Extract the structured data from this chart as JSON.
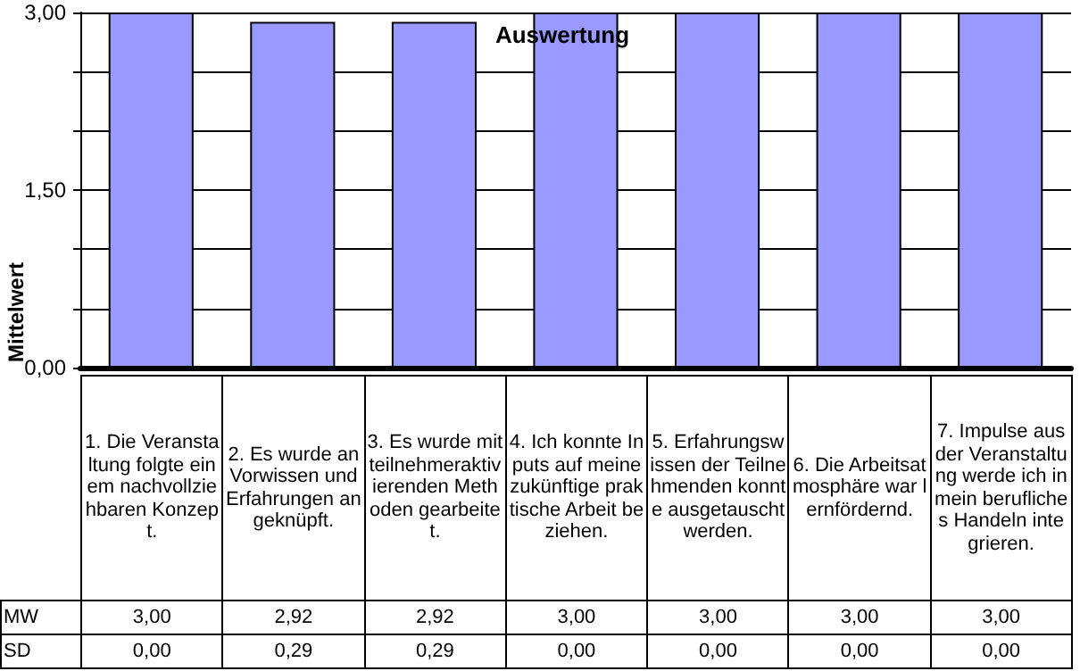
{
  "chart_data": {
    "type": "bar",
    "title": "Auswertung",
    "ylabel": "Mittelwert",
    "categories": [
      "1. Die Veranstaltung folgte einem nachvollziehbaren Konzept.",
      "2. Es wurde an Vorwissen und Erfahrungen angeknüpft.",
      "3. Es wurde mit teilnehmeraktivierenden Methoden gearbeitet.",
      "4. Ich konnte Inputs auf meine zukünftige praktische Arbeit beziehen.",
      "5. Erfahrungswissen der Teilnehmenden konnte ausgetauscht werden.",
      "6. Die Arbeitsatmosphäre war lernfördernd.",
      "7. Impulse aus der Veranstaltung werde ich in mein berufliches Handeln integrieren."
    ],
    "series": [
      {
        "name": "MW",
        "color": "#9999ff",
        "values": [
          3.0,
          2.92,
          2.92,
          3.0,
          3.0,
          3.0,
          3.0
        ],
        "value_labels": [
          "3,00",
          "2,92",
          "2,92",
          "3,00",
          "3,00",
          "3,00",
          "3,00"
        ]
      }
    ],
    "ylim": [
      0,
      3
    ],
    "yticks": [
      {
        "value": 0,
        "label": "0,00"
      },
      {
        "value": 0.5,
        "label": null
      },
      {
        "value": 1,
        "label": null
      },
      {
        "value": 1.5,
        "label": "1,50"
      },
      {
        "value": 2,
        "label": null
      },
      {
        "value": 2.5,
        "label": null
      },
      {
        "value": 3,
        "label": "3,00"
      }
    ],
    "grid": "y",
    "legend": false,
    "annotations": [
      "SD",
      "0,00",
      "0,29",
      "0,29",
      "0,00",
      "0,00",
      "0,00",
      "0,00"
    ]
  }
}
